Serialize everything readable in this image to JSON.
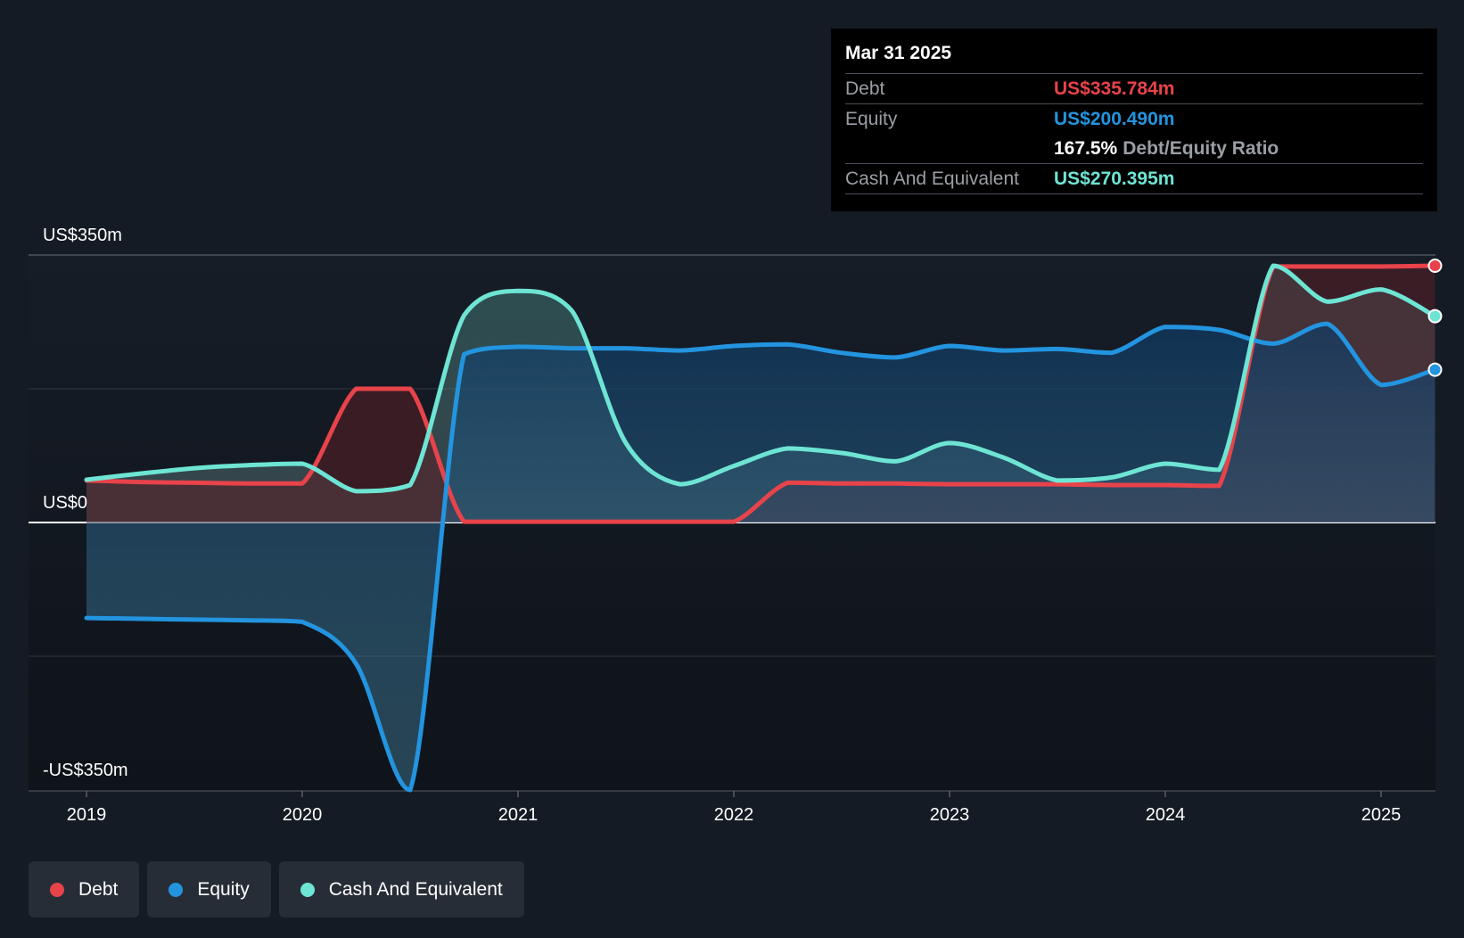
{
  "tooltip": {
    "date": "Mar 31 2025",
    "debt_label": "Debt",
    "debt_value": "US$335.784m",
    "equity_label": "Equity",
    "equity_value": "US$200.490m",
    "ratio_value": "167.5%",
    "ratio_label": "Debt/Equity Ratio",
    "cash_label": "Cash And Equivalent",
    "cash_value": "US$270.395m"
  },
  "legend": {
    "debt": "Debt",
    "equity": "Equity",
    "cash": "Cash And Equivalent"
  },
  "colors": {
    "debt": "#e8434a",
    "equity": "#2394df",
    "cash": "#6ee5d4",
    "background": "#151b24",
    "plot_background": "#10141b"
  },
  "chart_data": {
    "type": "area",
    "title": "",
    "xlabel": "",
    "ylabel": "",
    "ylim": [
      -350,
      350
    ],
    "y_ticks": [
      {
        "value": 350,
        "label": "US$350m"
      },
      {
        "value": 0,
        "label": "US$0"
      },
      {
        "value": -350,
        "label": "-US$350m"
      }
    ],
    "x_ticks": [
      {
        "value": 2019,
        "label": "2019"
      },
      {
        "value": 2020,
        "label": "2020"
      },
      {
        "value": 2021,
        "label": "2021"
      },
      {
        "value": 2022,
        "label": "2022"
      },
      {
        "value": 2023,
        "label": "2023"
      },
      {
        "value": 2024,
        "label": "2024"
      },
      {
        "value": 2025,
        "label": "2025"
      }
    ],
    "xlim": [
      2018.75,
      2025.25
    ],
    "grid": true,
    "legend_position": "bottom-left",
    "series": [
      {
        "name": "Cash And Equivalent",
        "key": "cash",
        "points": [
          [
            2019.0,
            56
          ],
          [
            2019.25,
            64
          ],
          [
            2019.5,
            71
          ],
          [
            2019.75,
            75
          ],
          [
            2020.0,
            77
          ],
          [
            2020.25,
            41
          ],
          [
            2020.5,
            49
          ],
          [
            2020.75,
            271
          ],
          [
            2021.0,
            303
          ],
          [
            2021.25,
            277
          ],
          [
            2021.5,
            104
          ],
          [
            2021.75,
            50
          ],
          [
            2022.0,
            74
          ],
          [
            2022.25,
            97
          ],
          [
            2022.5,
            91
          ],
          [
            2022.75,
            80
          ],
          [
            2023.0,
            104
          ],
          [
            2023.25,
            85
          ],
          [
            2023.5,
            55
          ],
          [
            2023.75,
            59
          ],
          [
            2024.0,
            77
          ],
          [
            2024.25,
            69
          ],
          [
            2024.5,
            336
          ],
          [
            2024.75,
            289
          ],
          [
            2025.0,
            305
          ],
          [
            2025.25,
            270
          ]
        ]
      },
      {
        "name": "Debt",
        "key": "debt",
        "points": [
          [
            2019.0,
            55
          ],
          [
            2019.25,
            53
          ],
          [
            2019.5,
            52
          ],
          [
            2019.75,
            51
          ],
          [
            2020.0,
            51
          ],
          [
            2020.25,
            175
          ],
          [
            2020.5,
            175
          ],
          [
            2020.75,
            1
          ],
          [
            2021.0,
            1
          ],
          [
            2021.25,
            1
          ],
          [
            2021.5,
            1
          ],
          [
            2021.75,
            1
          ],
          [
            2022.0,
            1
          ],
          [
            2022.25,
            52
          ],
          [
            2022.5,
            51
          ],
          [
            2022.75,
            51
          ],
          [
            2023.0,
            50
          ],
          [
            2023.25,
            50
          ],
          [
            2023.5,
            50
          ],
          [
            2023.75,
            49
          ],
          [
            2024.0,
            49
          ],
          [
            2024.25,
            48
          ],
          [
            2024.5,
            335
          ],
          [
            2024.75,
            335
          ],
          [
            2025.0,
            335
          ],
          [
            2025.25,
            336
          ]
        ]
      },
      {
        "name": "Equity",
        "key": "equity",
        "points": [
          [
            2019.0,
            -125
          ],
          [
            2019.25,
            -126
          ],
          [
            2019.5,
            -127
          ],
          [
            2019.75,
            -128
          ],
          [
            2020.0,
            -130
          ],
          [
            2020.25,
            -185
          ],
          [
            2020.5,
            -350
          ],
          [
            2020.75,
            220
          ],
          [
            2021.0,
            230
          ],
          [
            2021.25,
            228
          ],
          [
            2021.5,
            228
          ],
          [
            2021.75,
            225
          ],
          [
            2022.0,
            231
          ],
          [
            2022.25,
            233
          ],
          [
            2022.5,
            222
          ],
          [
            2022.75,
            216
          ],
          [
            2023.0,
            231
          ],
          [
            2023.25,
            225
          ],
          [
            2023.5,
            227
          ],
          [
            2023.75,
            222
          ],
          [
            2024.0,
            256
          ],
          [
            2024.25,
            252
          ],
          [
            2024.5,
            234
          ],
          [
            2024.75,
            260
          ],
          [
            2025.0,
            180
          ],
          [
            2025.25,
            200
          ]
        ]
      }
    ]
  }
}
